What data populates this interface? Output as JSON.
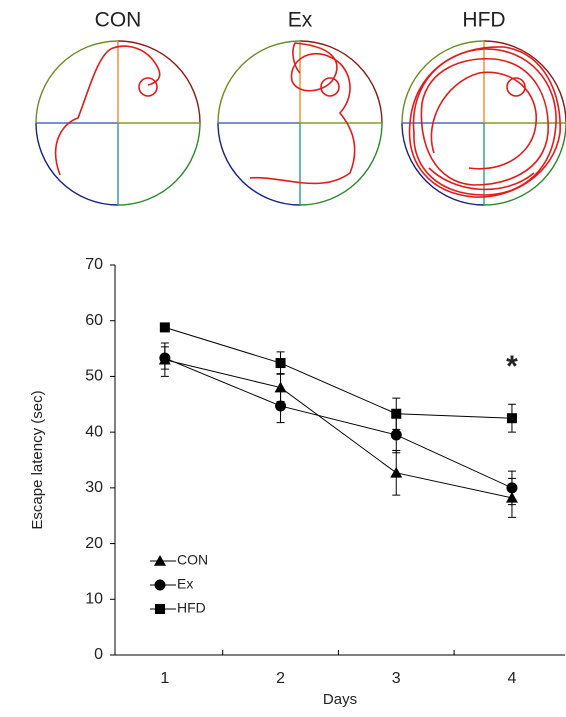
{
  "panels": [
    "CON",
    "Ex",
    "HFD"
  ],
  "chart_data": {
    "type": "line",
    "categories": [
      "1",
      "2",
      "3",
      "4"
    ],
    "xlabel": "Days",
    "ylabel": "Escape latency (sec)",
    "ylim": [
      0,
      70
    ],
    "yticks": [
      0,
      10,
      20,
      30,
      40,
      50,
      60,
      70
    ],
    "annotation": "*",
    "legend": "lower left",
    "series": [
      {
        "name": "CON",
        "color": "#000000",
        "marker": "triangle",
        "values": [
          53,
          48,
          32.7,
          28.2
        ],
        "errors": [
          3,
          2.5,
          4,
          3.5
        ]
      },
      {
        "name": "Ex",
        "color": "#000000",
        "marker": "circle",
        "values": [
          53.3,
          44.7,
          39.5,
          30
        ],
        "errors": [
          2,
          3,
          3.2,
          3
        ]
      },
      {
        "name": "HFD",
        "color": "#000000",
        "marker": "square",
        "values": [
          58.8,
          52.4,
          43.3,
          42.5
        ],
        "errors": [
          0.5,
          2,
          2.8,
          2.5
        ]
      }
    ]
  }
}
